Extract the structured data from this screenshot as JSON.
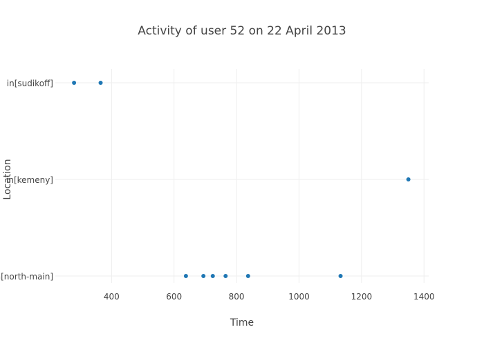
{
  "chart_data": {
    "type": "scatter",
    "title": "Activity of user 52 on 22 April 2013",
    "xlabel": "Time",
    "ylabel": "Location",
    "xlim": [
      220,
      1415
    ],
    "xticks": [
      400,
      600,
      800,
      1000,
      1200,
      1400
    ],
    "categories": [
      "in[sudikoff]",
      "in[kemeny]",
      "in[north-main]"
    ],
    "grid": true,
    "legend": "none",
    "marker_color": "#1f77b4",
    "points": [
      {
        "x": 280,
        "y": "in[sudikoff]"
      },
      {
        "x": 365,
        "y": "in[sudikoff]"
      },
      {
        "x": 1350,
        "y": "in[kemeny]"
      },
      {
        "x": 638,
        "y": "in[north-main]"
      },
      {
        "x": 694,
        "y": "in[north-main]"
      },
      {
        "x": 724,
        "y": "in[north-main]"
      },
      {
        "x": 765,
        "y": "in[north-main]"
      },
      {
        "x": 837,
        "y": "in[north-main]"
      },
      {
        "x": 1133,
        "y": "in[north-main]"
      }
    ]
  }
}
